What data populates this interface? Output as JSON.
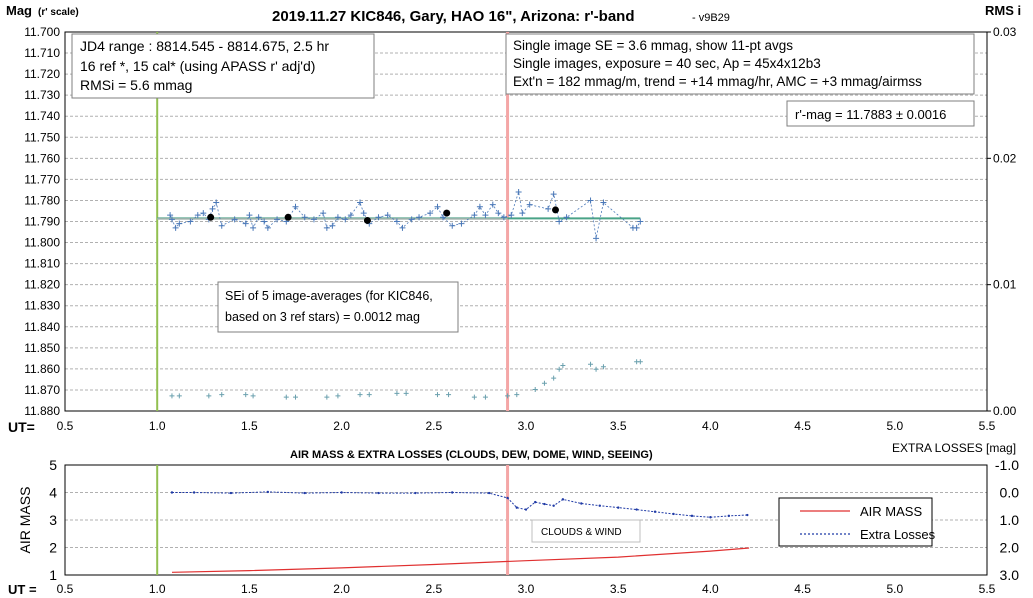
{
  "chart_data": [
    {
      "type": "scatter",
      "title": "2019.11.27 KIC846, Gary, HAO 16\", Arizona: r'-band",
      "version": "- v9B29",
      "ylabel_main": "Mag",
      "ylabel_sub": "(r' scale)",
      "y2label": "RMS i",
      "xlabel": "UT=",
      "xlim": [
        0.5,
        5.5
      ],
      "ylim": [
        11.88,
        11.7
      ],
      "y2lim": [
        0,
        0.03
      ],
      "x_ticks": [
        "0.5",
        "1.0",
        "1.5",
        "2.0",
        "2.5",
        "3.0",
        "3.5",
        "4.0",
        "4.5",
        "5.0",
        "5.5"
      ],
      "y_ticks": [
        "11.700",
        "11.710",
        "11.720",
        "11.730",
        "11.740",
        "11.750",
        "11.760",
        "11.770",
        "11.780",
        "11.790",
        "11.800",
        "11.810",
        "11.820",
        "11.830",
        "11.840",
        "11.850",
        "11.860",
        "11.870",
        "11.880"
      ],
      "y2_ticks": [
        "0.03",
        "0.02",
        "0.01",
        "0.00"
      ],
      "grid": true,
      "annotations": {
        "info_left": [
          "JD4 range : 8814.545 - 8814.675,  2.5  hr",
          "16 ref *, 15 cal* (using APASS r' adj'd)",
          "RMSi = 5.6 mmag"
        ],
        "info_right": [
          "Single image SE = 3.6 mmag, show  11-pt avgs",
          "Single images, exposure = 40 sec, Ap = 45x4x12b3",
          "Ext'n = 182 mmag/m, trend =  +14 mmag/hr, AMC = +3 mmag/airmss"
        ],
        "rmag": "r'-mag = 11.7883 ± 0.0016",
        "sei": [
          "SEi of 5 image-averages (for KIC846,",
          "based on 3 ref stars) = 0.0012 mag"
        ]
      },
      "vertical_markers": {
        "start": 1.0,
        "end": 2.9,
        "start_color": "#92c050",
        "end_color": "#f4a6a6"
      },
      "fit_line": {
        "x": [
          1.0,
          3.62
        ],
        "y": 11.7885,
        "color": "#4aa387"
      },
      "series": [
        {
          "marker": "+",
          "color": "#4a78b8",
          "points": [
            [
              1.07,
              11.787
            ],
            [
              1.08,
              11.789
            ],
            [
              1.1,
              11.793
            ],
            [
              1.12,
              11.791
            ],
            [
              1.18,
              11.79
            ],
            [
              1.22,
              11.787
            ],
            [
              1.25,
              11.786
            ],
            [
              1.28,
              11.789
            ],
            [
              1.3,
              11.784
            ],
            [
              1.32,
              11.781
            ],
            [
              1.35,
              11.792
            ],
            [
              1.42,
              11.789
            ],
            [
              1.48,
              11.791
            ],
            [
              1.5,
              11.787
            ],
            [
              1.52,
              11.793
            ],
            [
              1.55,
              11.788
            ],
            [
              1.58,
              11.79
            ],
            [
              1.6,
              11.793
            ],
            [
              1.65,
              11.789
            ],
            [
              1.7,
              11.79
            ],
            [
              1.75,
              11.783
            ],
            [
              1.8,
              11.788
            ],
            [
              1.85,
              11.789
            ],
            [
              1.9,
              11.786
            ],
            [
              1.92,
              11.793
            ],
            [
              1.95,
              11.792
            ],
            [
              1.98,
              11.788
            ],
            [
              2.02,
              11.789
            ],
            [
              2.05,
              11.787
            ],
            [
              2.1,
              11.781
            ],
            [
              2.12,
              11.786
            ],
            [
              2.15,
              11.791
            ],
            [
              2.2,
              11.788
            ],
            [
              2.25,
              11.787
            ],
            [
              2.3,
              11.79
            ],
            [
              2.33,
              11.793
            ],
            [
              2.38,
              11.789
            ],
            [
              2.42,
              11.788
            ],
            [
              2.48,
              11.786
            ],
            [
              2.52,
              11.783
            ],
            [
              2.55,
              11.788
            ],
            [
              2.6,
              11.792
            ],
            [
              2.65,
              11.791
            ],
            [
              2.72,
              11.787
            ],
            [
              2.75,
              11.783
            ],
            [
              2.78,
              11.787
            ],
            [
              2.82,
              11.782
            ],
            [
              2.85,
              11.786
            ],
            [
              2.88,
              11.788
            ],
            [
              2.92,
              11.787
            ],
            [
              2.96,
              11.776
            ],
            [
              2.98,
              11.786
            ],
            [
              3.02,
              11.782
            ],
            [
              3.12,
              11.784
            ],
            [
              3.15,
              11.777
            ],
            [
              3.18,
              11.79
            ],
            [
              3.22,
              11.788
            ],
            [
              3.35,
              11.78
            ],
            [
              3.38,
              11.798
            ],
            [
              3.42,
              11.781
            ],
            [
              3.58,
              11.793
            ],
            [
              3.6,
              11.793
            ],
            [
              3.62,
              11.79
            ]
          ]
        },
        {
          "name": "11-pt avgs",
          "marker": "dot",
          "color": "#000000",
          "points": [
            [
              1.29,
              11.788
            ],
            [
              1.71,
              11.788
            ],
            [
              2.14,
              11.7895
            ],
            [
              2.57,
              11.786
            ],
            [
              3.16,
              11.7845
            ]
          ]
        },
        {
          "marker": "+",
          "color": "#6aa0ae",
          "axis": "y2",
          "points": [
            [
              1.08,
              0.0012
            ],
            [
              1.12,
              0.0012
            ],
            [
              1.28,
              0.0012
            ],
            [
              1.35,
              0.0013
            ],
            [
              1.48,
              0.0013
            ],
            [
              1.52,
              0.0012
            ],
            [
              1.7,
              0.0011
            ],
            [
              1.75,
              0.0011
            ],
            [
              1.92,
              0.0011
            ],
            [
              1.98,
              0.0012
            ],
            [
              2.1,
              0.0013
            ],
            [
              2.15,
              0.0013
            ],
            [
              2.3,
              0.0014
            ],
            [
              2.35,
              0.0014
            ],
            [
              2.52,
              0.0013
            ],
            [
              2.58,
              0.0013
            ],
            [
              2.72,
              0.0011
            ],
            [
              2.78,
              0.0011
            ],
            [
              2.9,
              0.0012
            ],
            [
              2.95,
              0.0013
            ],
            [
              3.05,
              0.0017
            ],
            [
              3.1,
              0.0022
            ],
            [
              3.15,
              0.0026
            ],
            [
              3.18,
              0.0033
            ],
            [
              3.2,
              0.0036
            ],
            [
              3.35,
              0.0037
            ],
            [
              3.38,
              0.0033
            ],
            [
              3.42,
              0.0035
            ],
            [
              3.6,
              0.0039
            ],
            [
              3.62,
              0.0039
            ]
          ]
        }
      ]
    },
    {
      "type": "line",
      "title": "AIR MASS & EXTRA LOSSES (CLOUDS, DEW, DOME, WIND, SEEING)",
      "ylabel": "AIR MASS",
      "y2label": "EXTRA LOSSES [mag]",
      "xlabel": "UT =",
      "xlim": [
        0.5,
        5.5
      ],
      "ylim": [
        1,
        5
      ],
      "y2lim": [
        3.0,
        -1.0
      ],
      "x_ticks": [
        "0.5",
        "1.0",
        "1.5",
        "2.0",
        "2.5",
        "3.0",
        "3.5",
        "4.0",
        "4.5",
        "5.0",
        "5.5"
      ],
      "y_ticks": [
        "1",
        "2",
        "3",
        "4",
        "5"
      ],
      "y2_ticks": [
        "-1.0",
        "0.0",
        "1.0",
        "2.0",
        "3.0"
      ],
      "grid": true,
      "annotation": "CLOUDS & WIND",
      "vertical_markers": {
        "start": 1.0,
        "end": 2.9,
        "start_color": "#92c050",
        "end_color": "#f4a6a6"
      },
      "series": [
        {
          "name": "AIR MASS",
          "color": "#e03030",
          "x": [
            1.08,
            1.5,
            2.0,
            2.5,
            3.0,
            3.5,
            4.0,
            4.21
          ],
          "values": [
            1.1,
            1.16,
            1.26,
            1.38,
            1.52,
            1.65,
            1.87,
            1.98
          ]
        },
        {
          "name": "Extra Losses",
          "color": "#1f3aa6",
          "axis": "y2",
          "x": [
            1.08,
            1.2,
            1.4,
            1.6,
            1.8,
            2.0,
            2.2,
            2.4,
            2.6,
            2.8,
            2.9,
            2.95,
            3.0,
            3.05,
            3.1,
            3.15,
            3.2,
            3.3,
            3.4,
            3.5,
            3.6,
            3.7,
            3.8,
            3.9,
            4.0,
            4.1,
            4.2
          ],
          "values": [
            0.0,
            0.0,
            0.02,
            -0.02,
            0.02,
            0.0,
            0.02,
            0.02,
            0.0,
            0.02,
            0.2,
            0.55,
            0.62,
            0.35,
            0.42,
            0.48,
            0.25,
            0.4,
            0.48,
            0.55,
            0.62,
            0.7,
            0.78,
            0.85,
            0.9,
            0.85,
            0.82
          ]
        }
      ]
    }
  ]
}
